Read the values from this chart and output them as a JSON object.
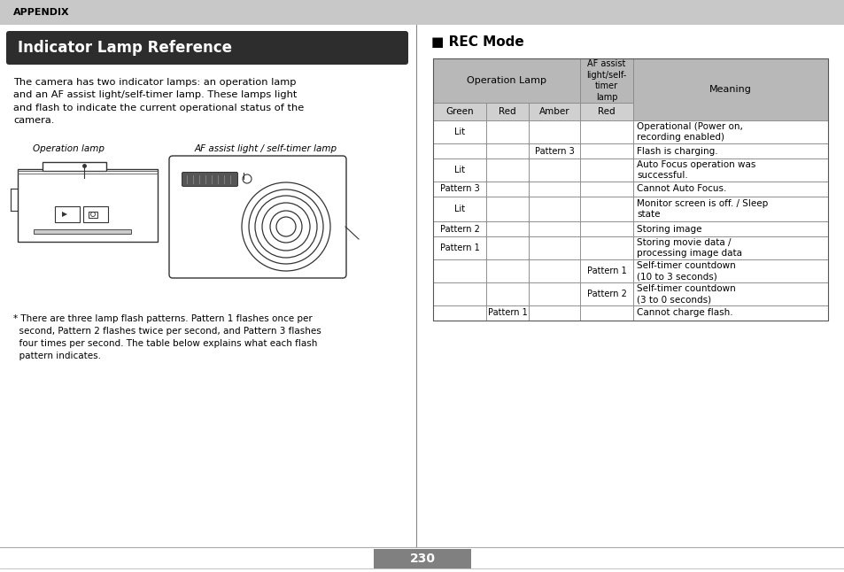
{
  "bg_color": "#ffffff",
  "appendix_bg": "#c8c8c8",
  "appendix_text": "APPENDIX",
  "title_bg": "#2d2d2d",
  "title_text": "Indicator Lamp Reference",
  "title_text_color": "#ffffff",
  "body_text": "The camera has two indicator lamps: an operation lamp\nand an AF assist light/self-timer lamp. These lamps light\nand flash to indicate the current operational status of the\ncamera.",
  "op_lamp_label": "Operation lamp",
  "af_lamp_label": "AF assist light / self-timer lamp",
  "footnote": "* There are three lamp flash patterns. Pattern 1 flashes once per\n  second, Pattern 2 flashes twice per second, and Pattern 3 flashes\n  four times per second. The table below explains what each flash\n  pattern indicates.",
  "rec_mode_title": "■ REC Mode",
  "divider_color": "#888888",
  "table_border_color": "#888888",
  "table_header_bg": "#b8b8b8",
  "table_subheader_bg": "#d0d0d0",
  "table_row_bg": "#ffffff",
  "table_rows": [
    [
      "Lit",
      "",
      "",
      "",
      "Operational (Power on,\nrecording enabled)"
    ],
    [
      "",
      "",
      "Pattern 3",
      "",
      "Flash is charging."
    ],
    [
      "Lit",
      "",
      "",
      "",
      "Auto Focus operation was\nsuccessful."
    ],
    [
      "Pattern 3",
      "",
      "",
      "",
      "Cannot Auto Focus."
    ],
    [
      "Lit",
      "",
      "",
      "",
      "Monitor screen is off. / Sleep\nstate"
    ],
    [
      "Pattern 2",
      "",
      "",
      "",
      "Storing image"
    ],
    [
      "Pattern 1",
      "",
      "",
      "",
      "Storing movie data /\nprocessing image data"
    ],
    [
      "",
      "",
      "",
      "Pattern 1",
      "Self-timer countdown\n(10 to 3 seconds)"
    ],
    [
      "",
      "",
      "",
      "Pattern 2",
      "Self-timer countdown\n(3 to 0 seconds)"
    ],
    [
      "",
      "Pattern 1",
      "",
      "",
      "Cannot charge flash."
    ]
  ],
  "page_number": "230",
  "page_number_bg": "#808080",
  "page_number_color": "#ffffff"
}
